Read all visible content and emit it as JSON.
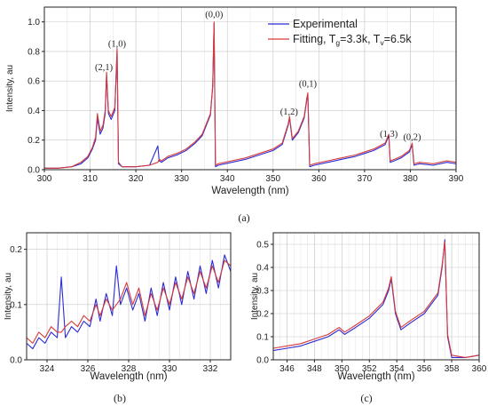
{
  "panel_labels": {
    "a": "(a)",
    "b": "(b)",
    "c": "(c)"
  },
  "chart_data": [
    {
      "id": "a",
      "type": "line",
      "xlabel": "Wavelength (nm)",
      "ylabel": "Intensity, au",
      "xlim": [
        300,
        390
      ],
      "ylim": [
        0,
        1.1
      ],
      "xticks": [
        "300",
        "310",
        "320",
        "330",
        "340",
        "350",
        "360",
        "370",
        "380",
        "390"
      ],
      "yticks": [
        "0.0",
        "0.2",
        "0.4",
        "0.6",
        "0.8",
        "1.0"
      ],
      "grid": true,
      "legend_position": "top-right",
      "legend": {
        "experimental": "Experimental",
        "fitting_prefix": "Fitting, T",
        "g_sub": "g",
        "fitting_mid": "=3.3k, T",
        "v_sub": "v",
        "fitting_end": "=6.5k"
      },
      "annotations": [
        {
          "text": "(2,1)",
          "x": 313.0,
          "y": 0.66
        },
        {
          "text": "(1,0)",
          "x": 315.9,
          "y": 0.82
        },
        {
          "text": "(0,0)",
          "x": 337.1,
          "y": 1.02
        },
        {
          "text": "(1,2)",
          "x": 353.5,
          "y": 0.36
        },
        {
          "text": "(0,1)",
          "x": 357.6,
          "y": 0.55
        },
        {
          "text": "(1,3)",
          "x": 375.3,
          "y": 0.21
        },
        {
          "text": "(0,2)",
          "x": 380.4,
          "y": 0.19
        }
      ],
      "series": [
        {
          "name": "Experimental",
          "color": "#2b2bd4",
          "x": [
            300,
            303,
            306,
            308,
            309.5,
            310.5,
            311.2,
            311.6,
            312.2,
            312.8,
            313.3,
            313.6,
            314.0,
            314.6,
            315.4,
            315.9,
            316.2,
            317,
            320,
            323,
            324.8,
            325.1,
            325.6,
            327,
            329,
            331,
            333,
            334.5,
            336.3,
            336.8,
            337.1,
            337.4,
            338,
            341,
            344,
            347,
            350,
            352,
            353.3,
            353.6,
            354.2,
            355.5,
            356.8,
            357.4,
            357.6,
            358,
            359,
            362,
            365,
            368,
            370,
            372,
            374.5,
            375.3,
            375.6,
            376.5,
            378,
            379.8,
            380.4,
            380.8,
            382,
            385,
            388,
            390
          ],
          "y": [
            0.01,
            0.01,
            0.02,
            0.04,
            0.08,
            0.14,
            0.2,
            0.35,
            0.24,
            0.28,
            0.38,
            0.64,
            0.38,
            0.34,
            0.4,
            0.8,
            0.04,
            0.02,
            0.02,
            0.03,
            0.16,
            0.06,
            0.05,
            0.08,
            0.1,
            0.13,
            0.18,
            0.23,
            0.37,
            0.56,
            0.99,
            0.02,
            0.03,
            0.05,
            0.07,
            0.1,
            0.13,
            0.17,
            0.3,
            0.35,
            0.2,
            0.25,
            0.35,
            0.48,
            0.51,
            0.02,
            0.03,
            0.05,
            0.07,
            0.09,
            0.11,
            0.13,
            0.17,
            0.23,
            0.05,
            0.06,
            0.08,
            0.12,
            0.17,
            0.03,
            0.04,
            0.03,
            0.05,
            0.04
          ]
        },
        {
          "name": "Fitting, Tg=3.3k, Tv=6.5k",
          "color": "#d63a3a",
          "x": [
            300,
            303,
            306,
            308,
            309.5,
            310.5,
            311.2,
            311.6,
            312.2,
            312.8,
            313.3,
            313.6,
            314.0,
            314.6,
            315.4,
            315.9,
            316.2,
            317,
            320,
            323,
            324.8,
            325.1,
            325.6,
            327,
            329,
            331,
            333,
            334.5,
            336.3,
            336.8,
            337.1,
            337.4,
            338,
            341,
            344,
            347,
            350,
            352,
            353.3,
            353.6,
            354.2,
            355.5,
            356.8,
            357.4,
            357.6,
            358,
            359,
            362,
            365,
            368,
            370,
            372,
            374.5,
            375.3,
            375.6,
            376.5,
            378,
            379.8,
            380.4,
            380.8,
            382,
            385,
            388,
            390
          ],
          "y": [
            0.01,
            0.01,
            0.02,
            0.05,
            0.09,
            0.15,
            0.22,
            0.38,
            0.26,
            0.3,
            0.4,
            0.66,
            0.4,
            0.36,
            0.42,
            0.82,
            0.05,
            0.02,
            0.02,
            0.03,
            0.05,
            0.07,
            0.06,
            0.09,
            0.11,
            0.14,
            0.19,
            0.24,
            0.38,
            0.57,
            1.0,
            0.03,
            0.04,
            0.06,
            0.08,
            0.11,
            0.14,
            0.18,
            0.31,
            0.36,
            0.21,
            0.26,
            0.36,
            0.49,
            0.52,
            0.03,
            0.04,
            0.06,
            0.08,
            0.1,
            0.12,
            0.14,
            0.18,
            0.24,
            0.06,
            0.07,
            0.09,
            0.13,
            0.18,
            0.04,
            0.05,
            0.04,
            0.06,
            0.05
          ]
        }
      ]
    },
    {
      "id": "b",
      "type": "line",
      "xlabel": "Wavelength (nm)",
      "ylabel": "Intensity, au",
      "xlim": [
        323,
        333
      ],
      "ylim": [
        0,
        0.23
      ],
      "xticks": [
        "324",
        "326",
        "328",
        "330",
        "332"
      ],
      "yticks": [
        "0.0",
        "0.1",
        "0.2"
      ],
      "grid": true,
      "series": [
        {
          "name": "Experimental",
          "color": "#2b2bd4",
          "x": [
            323.0,
            323.3,
            323.6,
            323.9,
            324.2,
            324.5,
            324.7,
            324.9,
            325.2,
            325.5,
            325.8,
            326.1,
            326.4,
            326.6,
            326.9,
            327.2,
            327.4,
            327.6,
            327.9,
            328.2,
            328.5,
            328.8,
            329.1,
            329.4,
            329.7,
            330.0,
            330.3,
            330.6,
            330.9,
            331.2,
            331.5,
            331.8,
            332.1,
            332.4,
            332.7,
            333.0
          ],
          "y": [
            0.03,
            0.02,
            0.04,
            0.03,
            0.05,
            0.04,
            0.15,
            0.04,
            0.06,
            0.05,
            0.07,
            0.06,
            0.11,
            0.07,
            0.12,
            0.08,
            0.17,
            0.1,
            0.13,
            0.09,
            0.12,
            0.07,
            0.13,
            0.08,
            0.14,
            0.09,
            0.15,
            0.1,
            0.16,
            0.11,
            0.17,
            0.12,
            0.18,
            0.13,
            0.19,
            0.16
          ]
        },
        {
          "name": "Fitting",
          "color": "#d63a3a",
          "x": [
            323.0,
            323.3,
            323.6,
            323.9,
            324.2,
            324.5,
            324.7,
            324.9,
            325.2,
            325.5,
            325.8,
            326.1,
            326.4,
            326.6,
            326.9,
            327.2,
            327.4,
            327.6,
            327.9,
            328.2,
            328.5,
            328.8,
            329.1,
            329.4,
            329.7,
            330.0,
            330.3,
            330.6,
            330.9,
            331.2,
            331.5,
            331.8,
            332.1,
            332.4,
            332.7,
            333.0
          ],
          "y": [
            0.04,
            0.03,
            0.05,
            0.04,
            0.06,
            0.05,
            0.05,
            0.06,
            0.07,
            0.06,
            0.08,
            0.07,
            0.1,
            0.08,
            0.11,
            0.09,
            0.1,
            0.11,
            0.14,
            0.1,
            0.13,
            0.08,
            0.12,
            0.09,
            0.13,
            0.1,
            0.14,
            0.11,
            0.15,
            0.12,
            0.16,
            0.13,
            0.17,
            0.14,
            0.18,
            0.17
          ]
        }
      ]
    },
    {
      "id": "c",
      "type": "line",
      "xlabel": "Wavelength (nm)",
      "ylabel": "Intensity, au",
      "xlim": [
        345,
        360
      ],
      "ylim": [
        0,
        0.55
      ],
      "xticks": [
        "346",
        "348",
        "350",
        "352",
        "354",
        "356",
        "358",
        "360"
      ],
      "yticks": [
        "0.0",
        "0.1",
        "0.2",
        "0.3",
        "0.4",
        "0.5"
      ],
      "grid": true,
      "series": [
        {
          "name": "Experimental",
          "color": "#2b2bd4",
          "x": [
            345,
            346,
            347,
            348,
            349,
            349.8,
            350.2,
            351,
            352,
            353,
            353.4,
            353.6,
            353.9,
            354.3,
            355,
            356,
            357,
            357.3,
            357.5,
            357.7,
            358,
            359,
            360
          ],
          "y": [
            0.04,
            0.05,
            0.06,
            0.08,
            0.1,
            0.13,
            0.11,
            0.14,
            0.18,
            0.24,
            0.3,
            0.35,
            0.2,
            0.13,
            0.16,
            0.2,
            0.28,
            0.4,
            0.52,
            0.1,
            0.01,
            0.01,
            0.02
          ]
        },
        {
          "name": "Fitting",
          "color": "#d63a3a",
          "x": [
            345,
            346,
            347,
            348,
            349,
            349.8,
            350.2,
            351,
            352,
            353,
            353.4,
            353.6,
            353.9,
            354.3,
            355,
            356,
            357,
            357.3,
            357.5,
            357.7,
            358,
            359,
            360
          ],
          "y": [
            0.05,
            0.06,
            0.07,
            0.09,
            0.11,
            0.14,
            0.12,
            0.15,
            0.19,
            0.25,
            0.31,
            0.36,
            0.21,
            0.14,
            0.17,
            0.21,
            0.29,
            0.41,
            0.51,
            0.11,
            0.02,
            0.01,
            0.02
          ]
        }
      ]
    }
  ]
}
